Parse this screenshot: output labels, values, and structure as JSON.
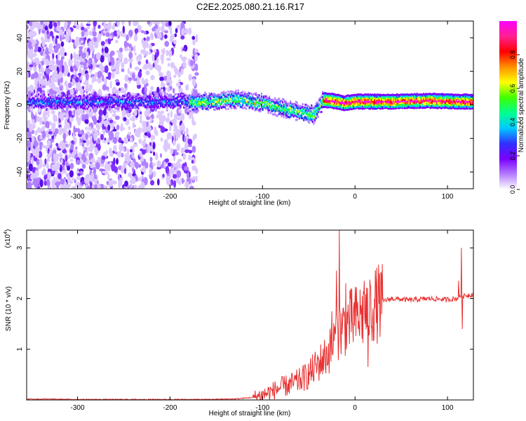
{
  "chart_data": [
    {
      "type": "heatmap",
      "title": "C2E2.2025.080.21.16.R17",
      "xlabel": "Height of straight line (km)",
      "ylabel": "Frequency (Hz)",
      "xlim": [
        -355,
        128
      ],
      "ylim": [
        -50,
        50
      ],
      "x_ticks": [
        -300,
        -200,
        -100,
        0,
        100
      ],
      "y_ticks": [
        -40,
        -20,
        0,
        20,
        40
      ],
      "colorbar": {
        "label": "Normalized spectral amplitude",
        "range": [
          0,
          1
        ],
        "ticks": [
          0.0,
          0.2,
          0.4,
          0.6,
          0.8
        ],
        "tick_labels": [
          "0.0",
          "0.2",
          "0.4",
          "0.6",
          "0.8"
        ],
        "colors": [
          "#ffffff",
          "#b47cff",
          "#7a00ff",
          "#3030ff",
          "#00c8ff",
          "#00ff90",
          "#40ff00",
          "#ffff00",
          "#ff9000",
          "#ff0000",
          "#ff2090",
          "#ff00ff"
        ]
      },
      "ridge": [
        {
          "x": -180,
          "y": 1.5
        },
        {
          "x": -160,
          "y": 2
        },
        {
          "x": -140,
          "y": 3
        },
        {
          "x": -120,
          "y": 3
        },
        {
          "x": -100,
          "y": 1
        },
        {
          "x": -80,
          "y": -2
        },
        {
          "x": -60,
          "y": -4
        },
        {
          "x": -45,
          "y": -6
        },
        {
          "x": -35,
          "y": 3
        },
        {
          "x": -20,
          "y": 2
        },
        {
          "x": -12,
          "y": 1
        },
        {
          "x": 0,
          "y": 2
        },
        {
          "x": 40,
          "y": 2
        },
        {
          "x": 80,
          "y": 2.5
        },
        {
          "x": 110,
          "y": 2
        },
        {
          "x": 128,
          "y": 2
        }
      ]
    },
    {
      "type": "line",
      "exponent_label": "(x10",
      "exponent_sup": "4",
      "exponent_close": ")",
      "xlabel": "Height of straight line (km)",
      "ylabel": "SNR (10 * v/v)",
      "xlim": [
        -355,
        128
      ],
      "ylim": [
        0,
        3.35
      ],
      "x_ticks": [
        -300,
        -200,
        -100,
        0,
        100
      ],
      "y_ticks": [
        1,
        2,
        3
      ],
      "series": [
        {
          "color": "#e83030",
          "x": [
            -355,
            -300,
            -250,
            -200,
            -160,
            -130,
            -110,
            -100,
            -90,
            -80,
            -70,
            -60,
            -50,
            -40,
            -30,
            -25,
            -20,
            -15,
            -10,
            -5,
            0,
            10,
            20,
            30,
            40,
            60,
            80,
            100,
            110,
            115,
            128
          ],
          "y": [
            0.02,
            0.01,
            0.01,
            0.01,
            0.01,
            0.02,
            0.05,
            0.1,
            0.17,
            0.25,
            0.3,
            0.38,
            0.5,
            0.7,
            0.9,
            1.05,
            1.3,
            1.4,
            1.5,
            1.55,
            1.6,
            1.7,
            1.85,
            1.95,
            2.0,
            1.97,
            2.0,
            1.98,
            2.0,
            2.05,
            2.08
          ]
        }
      ],
      "spikes": [
        {
          "x": -17,
          "y": 3.35
        },
        {
          "x": -20,
          "y": 2.55
        },
        {
          "x": -25,
          "y": 1.75
        },
        {
          "x": -10,
          "y": 2.3
        },
        {
          "x": 10,
          "y": 2.35
        },
        {
          "x": 115,
          "y": 3.0
        },
        {
          "x": 112,
          "y": 2.35
        },
        {
          "x": 116,
          "y": 1.4
        },
        {
          "x": 14,
          "y": 0.65
        }
      ]
    }
  ]
}
